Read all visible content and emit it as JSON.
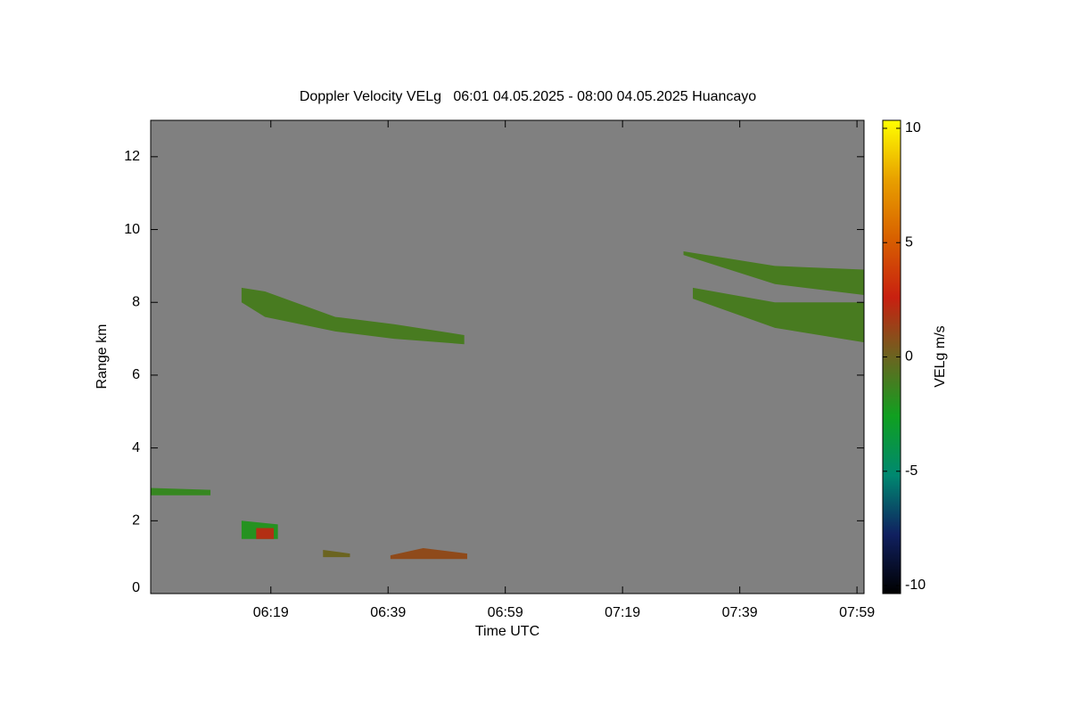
{
  "chart_data": {
    "type": "heatmap",
    "title": "Doppler Velocity VELg   06:01 04.05.2025 - 08:00 04.05.2025 Huancayo",
    "x_label": "Time UTC",
    "y_label": "Range km",
    "colorbar_label": "VELg m/s",
    "background": "#808080",
    "xlim": [
      358.5,
      480.2
    ],
    "xticks": [
      {
        "value": 379,
        "label": "06:19"
      },
      {
        "value": 399,
        "label": "06:39"
      },
      {
        "value": 419,
        "label": "06:59"
      },
      {
        "value": 439,
        "label": "07:19"
      },
      {
        "value": 459,
        "label": "07:39"
      },
      {
        "value": 479,
        "label": "07:59"
      }
    ],
    "ylim": [
      0,
      13
    ],
    "yticks": [
      0,
      2,
      4,
      6,
      8,
      10,
      12
    ],
    "zlim": [
      -10.35,
      10.35
    ],
    "zticks": [
      10,
      5,
      0,
      -5,
      -10
    ],
    "colormap": [
      "#000000",
      "#102060",
      "#008870",
      "#10a020",
      "#6b6420",
      "#c82010",
      "#d86000",
      "#e8a000",
      "#ffff00"
    ],
    "echoes": [
      {
        "x": [
          374,
          378,
          390,
          400,
          412,
          412,
          400,
          390,
          378,
          374
        ],
        "y": [
          8.4,
          8.3,
          7.6,
          7.4,
          7.1,
          6.85,
          7.0,
          7.2,
          7.6,
          8.0
        ],
        "value": -1
      },
      {
        "x": [
          449.4,
          465,
          480.2,
          480.2,
          465,
          449.4
        ],
        "y": [
          9.4,
          9.0,
          8.9,
          8.2,
          8.5,
          9.3
        ],
        "value": -1
      },
      {
        "x": [
          451,
          465,
          480.2,
          480.2,
          465,
          451
        ],
        "y": [
          8.4,
          8.0,
          8.0,
          6.9,
          7.3,
          8.1
        ],
        "value": -1
      },
      {
        "x": [
          358.5,
          368.7,
          368.7,
          358.5
        ],
        "y": [
          2.9,
          2.85,
          2.7,
          2.7
        ],
        "value": -1.5
      },
      {
        "x": [
          374,
          380.2,
          380.2,
          374
        ],
        "y": [
          2.0,
          1.9,
          1.5,
          1.5
        ],
        "value": -2
      },
      {
        "x": [
          376.5,
          379.5,
          379.5,
          376.5
        ],
        "y": [
          1.8,
          1.8,
          1.5,
          1.5
        ],
        "value": 2
      },
      {
        "x": [
          399.4,
          405,
          412.5,
          412.5,
          399.4
        ],
        "y": [
          1.05,
          1.25,
          1.1,
          0.95,
          0.95
        ],
        "value": 1
      },
      {
        "x": [
          387.9,
          392.5,
          392.5,
          387.9
        ],
        "y": [
          1.2,
          1.1,
          1.0,
          1.0
        ],
        "value": 0
      }
    ]
  }
}
